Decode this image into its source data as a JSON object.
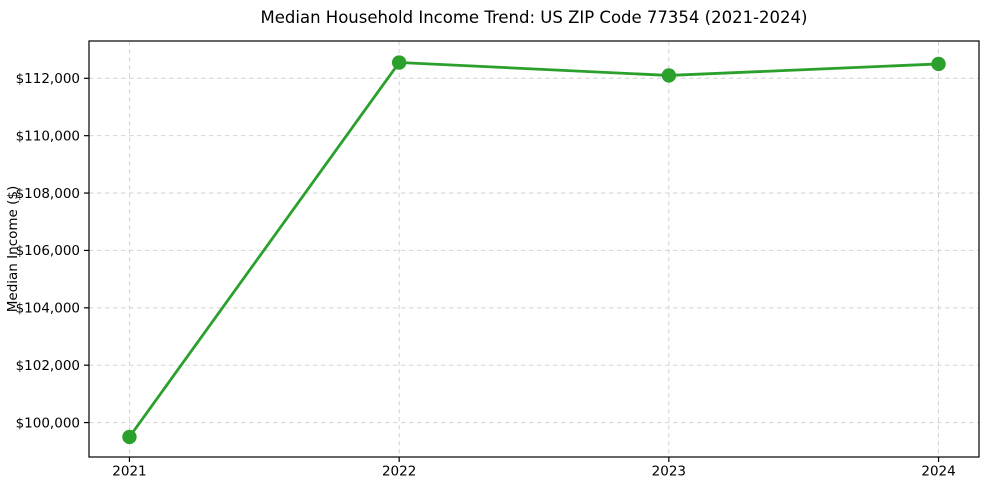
{
  "chart_data": {
    "type": "line",
    "title": "Median Household Income Trend: US ZIP Code 77354 (2021-2024)",
    "xlabel": "",
    "ylabel": "Median Income ($)",
    "x": [
      "2021",
      "2022",
      "2023",
      "2024"
    ],
    "values": [
      99500,
      112550,
      112100,
      112500
    ],
    "ylim": [
      98800,
      113300
    ],
    "yticks": [
      100000,
      102000,
      104000,
      106000,
      108000,
      110000,
      112000
    ],
    "ytick_labels": [
      "$100,000",
      "$102,000",
      "$104,000",
      "$106,000",
      "$108,000",
      "$110,000",
      "$112,000"
    ],
    "xtick_labels": [
      "2021",
      "2022",
      "2023",
      "2024"
    ],
    "grid": true,
    "grid_style": "dashed",
    "grid_color": "#d3d3d3",
    "line_color": "#2ca02c",
    "marker": "circle",
    "legend": "none",
    "background": "#ffffff",
    "spine_color": "#000000"
  }
}
